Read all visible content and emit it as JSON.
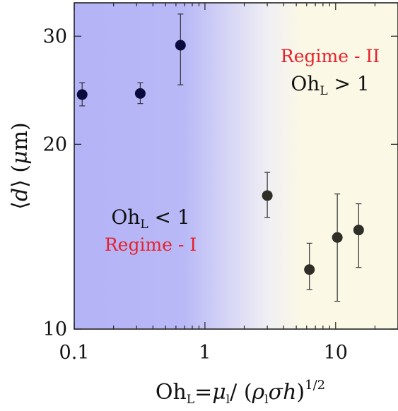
{
  "chart_data": {
    "type": "scatter",
    "xscale": "log",
    "yscale": "log",
    "xlim": [
      0.1,
      30
    ],
    "ylim": [
      10,
      34
    ],
    "x_ticks": [
      0.1,
      1,
      10
    ],
    "x_tick_labels": [
      "0.1",
      "1",
      "10"
    ],
    "y_ticks": [
      10,
      20,
      30
    ],
    "y_tick_labels": [
      "10",
      "20",
      "30"
    ],
    "regime_boundary": 1,
    "series": [
      {
        "color": "#0b0b3d",
        "points": [
          {
            "x": 0.115,
            "y": 24.1,
            "yerr_low": 23.1,
            "yerr_high": 25.2
          },
          {
            "x": 0.32,
            "y": 24.2,
            "yerr_low": 23.3,
            "yerr_high": 25.2
          },
          {
            "x": 0.65,
            "y": 29.0,
            "yerr_low": 25.0,
            "yerr_high": 32.6
          }
        ]
      },
      {
        "color": "#2f2f27",
        "points": [
          {
            "x": 3.0,
            "y": 16.5,
            "yerr_low": 15.2,
            "yerr_high": 18.0
          },
          {
            "x": 6.3,
            "y": 12.5,
            "yerr_low": 11.6,
            "yerr_high": 13.8
          },
          {
            "x": 10.3,
            "y": 14.1,
            "yerr_low": 11.1,
            "yerr_high": 16.6
          },
          {
            "x": 15.0,
            "y": 14.5,
            "yerr_low": 12.6,
            "yerr_high": 16.0
          }
        ]
      }
    ],
    "colors": {
      "regime_1_fill": "#b8b8f8",
      "regime_2_fill": "#fbf8e6",
      "annotation_red": "#e8202a"
    }
  },
  "annotations": {
    "regime_2": {
      "name": "Regime - II",
      "oh_base": "Oh",
      "oh_sub": "L",
      "relation": " > 1"
    },
    "regime_1": {
      "name": "Regime - I",
      "oh_base": "Oh",
      "oh_sub": "L",
      "relation": " < 1"
    }
  },
  "y_axis_title": {
    "left_bracket": "⟨",
    "var": "d",
    "right_bracket": "⟩",
    "unit_open": " (",
    "unit_mu": "μ",
    "unit_m": "m",
    "unit_close": ")"
  },
  "x_axis_title": {
    "oh": "Oh",
    "oh_sub": "L",
    "equals": "=",
    "mu": "μ",
    "mu_sub": "l",
    "slash": "/ (",
    "rho": "ρ",
    "rho_sub": "l",
    "sigma_h": "σh",
    "close": ")",
    "exponent": "1/2"
  }
}
